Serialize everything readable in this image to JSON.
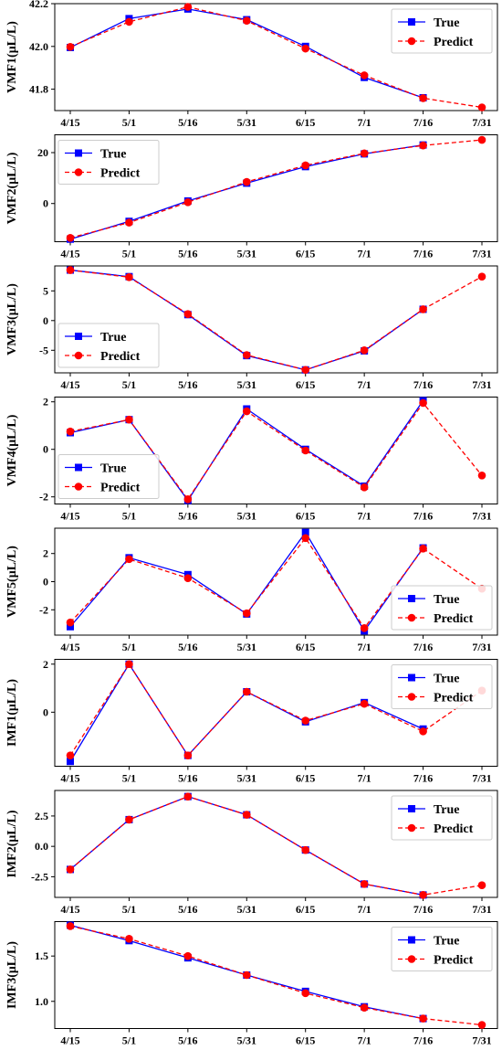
{
  "chart_data": [
    {
      "type": "line",
      "ylabel": "VMF1(μL/L)",
      "ylim": [
        41.7,
        42.2
      ],
      "yticks": [
        41.8,
        42.0,
        42.2
      ],
      "ytick_labels": [
        "41.8",
        "42.0",
        "42.2"
      ],
      "legend_position": "top-right",
      "categories": [
        "4/15",
        "5/1",
        "5/16",
        "5/31",
        "6/15",
        "7/1",
        "7/16",
        "7/31"
      ],
      "series": [
        {
          "name": "True",
          "color": "#0000ff",
          "style": "solid",
          "marker": "square",
          "values": [
            41.995,
            42.13,
            42.175,
            42.125,
            42.0,
            41.855,
            41.76,
            null
          ]
        },
        {
          "name": "Predict",
          "color": "#ff0000",
          "style": "dashed",
          "marker": "circle",
          "values": [
            41.998,
            42.115,
            42.185,
            42.12,
            41.99,
            41.865,
            41.758,
            41.715
          ]
        }
      ]
    },
    {
      "type": "line",
      "ylabel": "VMF2(μL/L)",
      "ylim": [
        -15,
        27
      ],
      "yticks": [
        0,
        20
      ],
      "ytick_labels": [
        "0",
        "20"
      ],
      "legend_position": "top-left",
      "categories": [
        "4/15",
        "5/1",
        "5/16",
        "5/31",
        "6/15",
        "7/1",
        "7/16",
        "7/31"
      ],
      "series": [
        {
          "name": "True",
          "color": "#0000ff",
          "style": "solid",
          "marker": "square",
          "values": [
            -14.0,
            -7.0,
            1.0,
            8.0,
            14.5,
            19.5,
            23.0,
            null
          ]
        },
        {
          "name": "Predict",
          "color": "#ff0000",
          "style": "dashed",
          "marker": "circle",
          "values": [
            -13.5,
            -7.5,
            0.5,
            8.5,
            15.0,
            19.7,
            22.8,
            25.0
          ]
        }
      ]
    },
    {
      "type": "line",
      "ylabel": "VMF3(μL/L)",
      "ylim": [
        -8.8,
        9.2
      ],
      "yticks": [
        -5,
        0,
        5
      ],
      "ytick_labels": [
        "-5",
        "0",
        "5"
      ],
      "legend_position": "bottom-left",
      "categories": [
        "4/15",
        "5/1",
        "5/16",
        "5/31",
        "6/15",
        "7/1",
        "7/16",
        "7/31"
      ],
      "series": [
        {
          "name": "True",
          "color": "#0000ff",
          "style": "solid",
          "marker": "square",
          "values": [
            8.5,
            7.4,
            1.0,
            -5.9,
            -8.3,
            -5.1,
            1.9,
            null
          ]
        },
        {
          "name": "Predict",
          "color": "#ff0000",
          "style": "dashed",
          "marker": "circle",
          "values": [
            8.5,
            7.3,
            1.1,
            -5.8,
            -8.3,
            -5.0,
            1.9,
            7.4
          ]
        }
      ]
    },
    {
      "type": "line",
      "ylabel": "VMF4(μL/L)",
      "ylim": [
        -2.3,
        2.2
      ],
      "yticks": [
        -2,
        0,
        2
      ],
      "ytick_labels": [
        "-2",
        "0",
        "2"
      ],
      "legend_position": "bottom-left",
      "categories": [
        "4/15",
        "5/1",
        "5/16",
        "5/31",
        "6/15",
        "7/1",
        "7/16",
        "7/31"
      ],
      "series": [
        {
          "name": "True",
          "color": "#0000ff",
          "style": "solid",
          "marker": "square",
          "values": [
            0.7,
            1.25,
            -2.15,
            1.7,
            0.0,
            -1.55,
            2.05,
            null
          ]
        },
        {
          "name": "Predict",
          "color": "#ff0000",
          "style": "dashed",
          "marker": "circle",
          "values": [
            0.75,
            1.25,
            -2.1,
            1.6,
            -0.05,
            -1.6,
            1.95,
            -1.1
          ]
        }
      ]
    },
    {
      "type": "line",
      "ylabel": "VMF5(μL/L)",
      "ylim": [
        -3.8,
        3.8
      ],
      "yticks": [
        -2,
        0,
        2
      ],
      "ytick_labels": [
        "-2",
        "0",
        "2"
      ],
      "legend_position": "bottom-right",
      "categories": [
        "4/15",
        "5/1",
        "5/16",
        "5/31",
        "6/15",
        "7/1",
        "7/16",
        "7/31"
      ],
      "series": [
        {
          "name": "True",
          "color": "#0000ff",
          "style": "solid",
          "marker": "square",
          "values": [
            -3.2,
            1.7,
            0.5,
            -2.3,
            3.5,
            -3.5,
            2.4,
            null
          ]
        },
        {
          "name": "Predict",
          "color": "#ff0000",
          "style": "dashed",
          "marker": "circle",
          "values": [
            -2.9,
            1.6,
            0.25,
            -2.25,
            3.1,
            -3.3,
            2.35,
            -0.5
          ]
        }
      ]
    },
    {
      "type": "line",
      "ylabel": "IMF1(μL/L)",
      "ylim": [
        -2.25,
        2.2
      ],
      "yticks": [
        0,
        2
      ],
      "ytick_labels": [
        "0",
        "2"
      ],
      "legend_position": "top-right",
      "categories": [
        "4/15",
        "5/1",
        "5/16",
        "5/31",
        "6/15",
        "7/1",
        "7/16",
        "7/31"
      ],
      "series": [
        {
          "name": "True",
          "color": "#0000ff",
          "style": "solid",
          "marker": "square",
          "values": [
            -2.05,
            2.0,
            -1.8,
            0.85,
            -0.4,
            0.4,
            -0.7,
            null
          ]
        },
        {
          "name": "Predict",
          "color": "#ff0000",
          "style": "dashed",
          "marker": "circle",
          "values": [
            -1.8,
            2.0,
            -1.8,
            0.85,
            -0.35,
            0.35,
            -0.8,
            0.9
          ]
        }
      ]
    },
    {
      "type": "line",
      "ylabel": "IMF2(μL/L)",
      "ylim": [
        -4.2,
        4.6
      ],
      "yticks": [
        -2.5,
        0.0,
        2.5
      ],
      "ytick_labels": [
        "-2.5",
        "0.0",
        "2.5"
      ],
      "legend_position": "top-right",
      "categories": [
        "4/15",
        "5/1",
        "5/16",
        "5/31",
        "6/15",
        "7/1",
        "7/16",
        "7/31"
      ],
      "series": [
        {
          "name": "True",
          "color": "#0000ff",
          "style": "solid",
          "marker": "square",
          "values": [
            -1.9,
            2.2,
            4.1,
            2.6,
            -0.3,
            -3.1,
            -4.0,
            null
          ]
        },
        {
          "name": "Predict",
          "color": "#ff0000",
          "style": "dashed",
          "marker": "circle",
          "values": [
            -1.9,
            2.2,
            4.1,
            2.6,
            -0.3,
            -3.1,
            -4.0,
            -3.2
          ]
        }
      ]
    },
    {
      "type": "line",
      "ylabel": "IMF3(μL/L)",
      "ylim": [
        0.7,
        1.88
      ],
      "yticks": [
        1.0,
        1.5
      ],
      "ytick_labels": [
        "1.0",
        "1.5"
      ],
      "legend_position": "top-right",
      "categories": [
        "4/15",
        "5/1",
        "5/16",
        "5/31",
        "6/15",
        "7/1",
        "7/16",
        "7/31"
      ],
      "series": [
        {
          "name": "True",
          "color": "#0000ff",
          "style": "solid",
          "marker": "square",
          "values": [
            1.84,
            1.67,
            1.48,
            1.29,
            1.11,
            0.94,
            0.81,
            null
          ]
        },
        {
          "name": "Predict",
          "color": "#ff0000",
          "style": "dashed",
          "marker": "circle",
          "values": [
            1.83,
            1.69,
            1.5,
            1.29,
            1.09,
            0.93,
            0.81,
            0.74
          ]
        }
      ]
    }
  ]
}
